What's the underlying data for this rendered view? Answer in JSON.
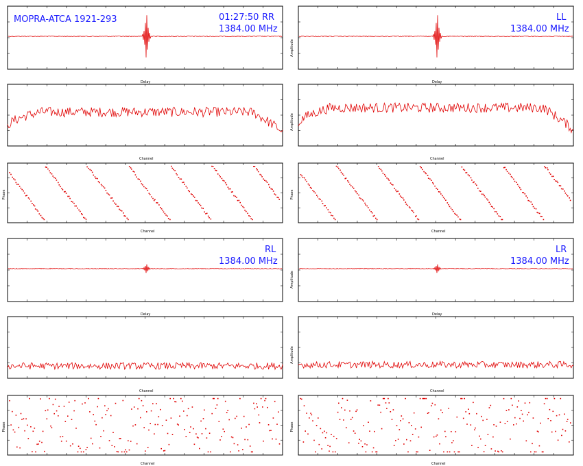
{
  "source_label": "MOPRA-ATCA 1921-293",
  "time": "01:27:50",
  "frequency": "1384.00 MHz",
  "colors": {
    "trace": "#e00000",
    "annotation": "#1a1aff",
    "frame": "#000000"
  },
  "panels": [
    {
      "id": "RR",
      "pol": "RR"
    },
    {
      "id": "LL",
      "pol": "LL"
    },
    {
      "id": "RL",
      "pol": "RL"
    },
    {
      "id": "LR",
      "pol": "LR"
    }
  ],
  "axis_labels": {
    "delay": "Delay",
    "channel": "Channel",
    "amplitude": "Amplitude",
    "phase": "Phase"
  },
  "chart_data": [
    {
      "panel": "RR",
      "type": "line",
      "quantity": "delay",
      "xlabel": "Delay",
      "ylabel": "",
      "peak_x_fraction": 0.5,
      "peak_amplitude": 1.0,
      "grid": false
    },
    {
      "panel": "RR",
      "type": "line",
      "quantity": "amplitude",
      "xlabel": "Channel",
      "ylabel": "",
      "level": 0.55,
      "edge_rolloff": true,
      "grid": false
    },
    {
      "panel": "RR",
      "type": "scatter",
      "quantity": "phase",
      "xlabel": "Channel",
      "ylabel": "Phase",
      "phase_wraps": 6.5,
      "noise": 0.02,
      "grid": false
    },
    {
      "panel": "LL",
      "type": "line",
      "quantity": "delay",
      "xlabel": "Delay",
      "ylabel": "Amplitude",
      "peak_x_fraction": 0.5,
      "peak_amplitude": 1.0,
      "grid": false
    },
    {
      "panel": "LL",
      "type": "line",
      "quantity": "amplitude",
      "xlabel": "Channel",
      "ylabel": "Amplitude",
      "level": 0.62,
      "edge_rolloff": true,
      "grid": false
    },
    {
      "panel": "LL",
      "type": "scatter",
      "quantity": "phase",
      "xlabel": "Channel",
      "ylabel": "Phase",
      "phase_wraps": 6.5,
      "noise": 0.02,
      "grid": false
    },
    {
      "panel": "RL",
      "type": "line",
      "quantity": "delay",
      "xlabel": "Delay",
      "ylabel": "",
      "peak_x_fraction": 0.5,
      "peak_amplitude": 0.2,
      "grid": false
    },
    {
      "panel": "RL",
      "type": "line",
      "quantity": "amplitude",
      "xlabel": "Channel",
      "ylabel": "",
      "level": 0.2,
      "edge_rolloff": false,
      "grid": false
    },
    {
      "panel": "RL",
      "type": "scatter",
      "quantity": "phase",
      "xlabel": "Channel",
      "ylabel": "Phase",
      "phase_wraps": 6.5,
      "noise": 0.35,
      "grid": false
    },
    {
      "panel": "LR",
      "type": "line",
      "quantity": "delay",
      "xlabel": "Delay",
      "ylabel": "Amplitude",
      "peak_x_fraction": 0.5,
      "peak_amplitude": 0.2,
      "grid": false
    },
    {
      "panel": "LR",
      "type": "line",
      "quantity": "amplitude",
      "xlabel": "Channel",
      "ylabel": "Amplitude",
      "level": 0.22,
      "edge_rolloff": false,
      "grid": false
    },
    {
      "panel": "LR",
      "type": "scatter",
      "quantity": "phase",
      "xlabel": "Channel",
      "ylabel": "Phase",
      "phase_wraps": 6.5,
      "noise": 0.35,
      "grid": false
    }
  ]
}
